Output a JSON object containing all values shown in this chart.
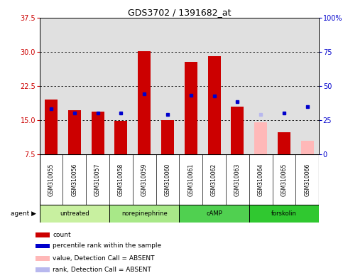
{
  "title": "GDS3702 / 1391682_at",
  "samples": [
    "GSM310055",
    "GSM310056",
    "GSM310057",
    "GSM310058",
    "GSM310059",
    "GSM310060",
    "GSM310061",
    "GSM310062",
    "GSM310063",
    "GSM310064",
    "GSM310065",
    "GSM310066"
  ],
  "agents": [
    {
      "label": "untreated",
      "start": 0,
      "end": 2,
      "color": "#c8f0a0"
    },
    {
      "label": "norepinephrine",
      "start": 3,
      "end": 5,
      "color": "#a8e888"
    },
    {
      "label": "cAMP",
      "start": 6,
      "end": 8,
      "color": "#50d050"
    },
    {
      "label": "forskolin",
      "start": 9,
      "end": 11,
      "color": "#30c830"
    }
  ],
  "bar_values": [
    19.5,
    17.2,
    16.8,
    14.9,
    30.2,
    15.0,
    27.8,
    29.0,
    18.0,
    14.5,
    12.3,
    10.5
  ],
  "bar_colors": [
    "#cc0000",
    "#cc0000",
    "#cc0000",
    "#cc0000",
    "#cc0000",
    "#cc0000",
    "#cc0000",
    "#cc0000",
    "#cc0000",
    "#ffb8b8",
    "#cc0000",
    "#ffb8b8"
  ],
  "rank_values": [
    17.5,
    16.5,
    16.5,
    16.5,
    20.8,
    16.2,
    20.5,
    20.3,
    19.0,
    16.2,
    16.5,
    18.0
  ],
  "rank_colors": [
    "#0000cc",
    "#0000cc",
    "#0000cc",
    "#0000cc",
    "#0000cc",
    "#0000cc",
    "#0000cc",
    "#0000cc",
    "#0000cc",
    "#b8b8ee",
    "#0000cc",
    "#0000cc"
  ],
  "ylim_left": [
    7.5,
    37.5
  ],
  "ylim_right": [
    0,
    100
  ],
  "yticks_left": [
    7.5,
    15.0,
    22.5,
    30.0,
    37.5
  ],
  "yticks_right": [
    0,
    25,
    50,
    75,
    100
  ],
  "ytick_right_labels": [
    "0",
    "25",
    "50",
    "75",
    "100%"
  ],
  "ylabel_left_color": "#cc0000",
  "ylabel_right_color": "#0000cc",
  "background_color": "#ffffff",
  "plot_bg_color": "#e0e0e0",
  "sample_bg_color": "#c8c8c8",
  "legend_items": [
    {
      "label": "count",
      "color": "#cc0000"
    },
    {
      "label": "percentile rank within the sample",
      "color": "#0000cc"
    },
    {
      "label": "value, Detection Call = ABSENT",
      "color": "#ffb8b8"
    },
    {
      "label": "rank, Detection Call = ABSENT",
      "color": "#b8b8ee"
    }
  ],
  "agent_label": "agent"
}
